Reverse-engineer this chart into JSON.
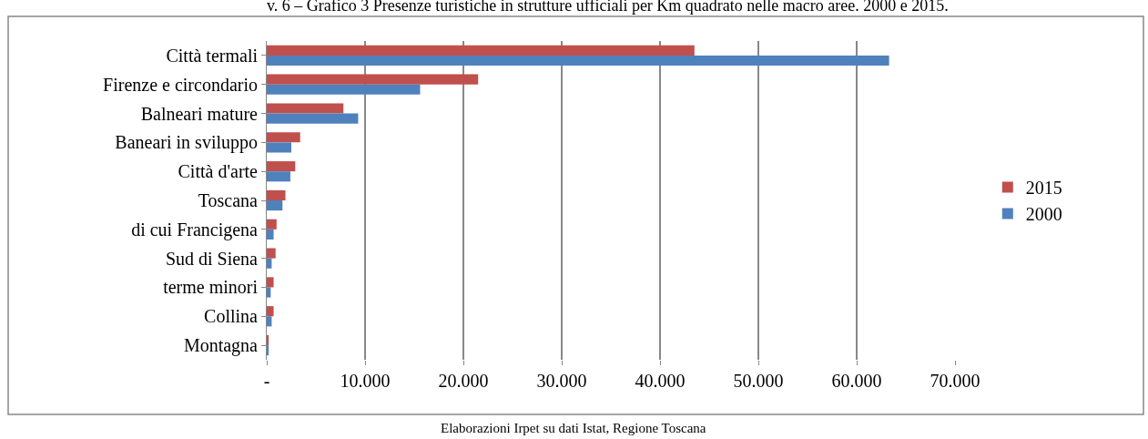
{
  "chart_data": {
    "type": "bar",
    "orientation": "horizontal",
    "title": "v. 6 – Grafico 3 Presenze turistiche in strutture ufficiali per Km quadrato nelle macro aree. 2000 e 2015.",
    "categories": [
      "Città termali",
      "Firenze e circondario",
      "Balneari mature",
      "Baneari in sviluppo",
      "Città d'arte",
      "Toscana",
      "di cui Francigena",
      "Sud di Siena",
      "terme minori",
      "Collina",
      "Montagna"
    ],
    "series": [
      {
        "name": "2015",
        "color": "#c0504d",
        "values": [
          43500,
          21500,
          7800,
          3400,
          2900,
          1900,
          1000,
          900,
          700,
          700,
          200
        ]
      },
      {
        "name": "2000",
        "color": "#4f81bd",
        "values": [
          63300,
          15600,
          9300,
          2500,
          2400,
          1600,
          700,
          500,
          400,
          500,
          200
        ]
      }
    ],
    "xlim": [
      0,
      70000
    ],
    "xticks": [
      {
        "value": 0,
        "label": "-"
      },
      {
        "value": 10000,
        "label": "10.000"
      },
      {
        "value": 20000,
        "label": "20.000"
      },
      {
        "value": 30000,
        "label": "30.000"
      },
      {
        "value": 40000,
        "label": "40.000"
      },
      {
        "value": 50000,
        "label": "50.000"
      },
      {
        "value": 60000,
        "label": "60.000"
      },
      {
        "value": 70000,
        "label": "70.000"
      }
    ],
    "grid": "x",
    "legend": "right",
    "annotations": [
      "Elaborazioni Irpet su dati Istat, Regione Toscana"
    ]
  }
}
